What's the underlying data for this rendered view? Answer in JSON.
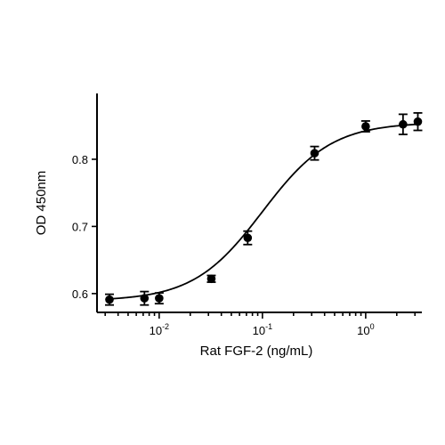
{
  "chart_data": {
    "type": "scatter",
    "xlabel": "Rat FGF-2 (ng/mL)",
    "ylabel": "OD 450nm",
    "x_scale": "log",
    "xlim": [
      0.0025,
      3.5
    ],
    "ylim": [
      0.572,
      0.898
    ],
    "x_ticks": [
      {
        "value": 0.01,
        "base": "10",
        "exp": "-2"
      },
      {
        "value": 0.1,
        "base": "10",
        "exp": "-1"
      },
      {
        "value": 1,
        "base": "10",
        "exp": "0"
      }
    ],
    "y_ticks": [
      {
        "value": 0.6,
        "label": "0.6"
      },
      {
        "value": 0.7,
        "label": "0.7"
      },
      {
        "value": 0.8,
        "label": "0.8"
      }
    ],
    "points": [
      {
        "x": 0.0033,
        "y": 0.591,
        "err": 0.008
      },
      {
        "x": 0.0072,
        "y": 0.593,
        "err": 0.01
      },
      {
        "x": 0.01,
        "y": 0.593,
        "err": 0.008
      },
      {
        "x": 0.032,
        "y": 0.622,
        "err": 0.005
      },
      {
        "x": 0.072,
        "y": 0.683,
        "err": 0.01
      },
      {
        "x": 0.32,
        "y": 0.809,
        "err": 0.01
      },
      {
        "x": 1.0,
        "y": 0.849,
        "err": 0.008
      },
      {
        "x": 2.3,
        "y": 0.852,
        "err": 0.015
      },
      {
        "x": 3.2,
        "y": 0.856,
        "err": 0.013
      }
    ],
    "fit": {
      "model": "4PL",
      "bottom": 0.589,
      "top": 0.855,
      "ec50": 0.1,
      "hill": 1.3
    },
    "grid": false,
    "legend": "none"
  }
}
